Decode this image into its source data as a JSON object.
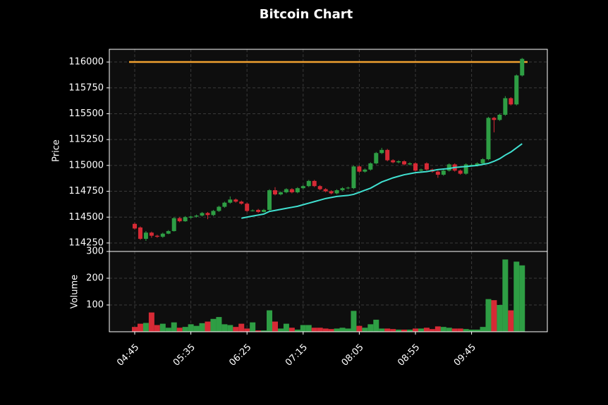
{
  "chart_data": {
    "type": "candlestick",
    "title": "Bitcoin Chart",
    "ylabel": "Price",
    "volume_label": "Volume",
    "categories": [
      "04:45",
      null,
      null,
      null,
      null,
      null,
      null,
      null,
      null,
      null,
      "05:35",
      null,
      null,
      null,
      null,
      null,
      null,
      null,
      null,
      null,
      "06:25",
      null,
      null,
      null,
      null,
      null,
      null,
      null,
      null,
      null,
      "07:15",
      null,
      null,
      null,
      null,
      null,
      null,
      null,
      null,
      null,
      "08:05",
      null,
      null,
      null,
      null,
      null,
      null,
      null,
      null,
      null,
      "08:55",
      null,
      null,
      null,
      null,
      null,
      null,
      null,
      null,
      null,
      "09:45",
      null,
      null,
      null,
      null,
      null,
      null,
      null,
      null,
      null
    ],
    "open": [
      114435,
      114400,
      114290,
      114350,
      114320,
      114310,
      114340,
      114365,
      114490,
      114460,
      114495,
      114505,
      114515,
      114540,
      114520,
      114560,
      114600,
      114640,
      114670,
      114650,
      114630,
      114560,
      114570,
      114550,
      114570,
      114760,
      114720,
      114740,
      114770,
      114740,
      114780,
      114800,
      114850,
      114800,
      114770,
      114750,
      114730,
      114760,
      114780,
      114780,
      114990,
      114940,
      114960,
      115020,
      115120,
      115150,
      115050,
      115030,
      115040,
      115010,
      115020,
      114950,
      115020,
      114960,
      114940,
      114910,
      114950,
      115010,
      114950,
      114920,
      115000,
      115000,
      115020,
      115060,
      115460,
      115440,
      115490,
      115650,
      115590,
      115870
    ],
    "high": [
      114445,
      114410,
      114365,
      114360,
      114330,
      114350,
      114375,
      114500,
      114500,
      114510,
      114515,
      114525,
      114550,
      114550,
      114570,
      114610,
      114650,
      114700,
      114680,
      114660,
      114640,
      114575,
      114580,
      114580,
      114770,
      114790,
      114750,
      114780,
      114780,
      114790,
      114810,
      114860,
      114860,
      114810,
      114780,
      114760,
      114770,
      114790,
      114795,
      115000,
      115000,
      114970,
      115030,
      115130,
      115170,
      115160,
      115060,
      115050,
      115050,
      115030,
      115030,
      114970,
      115030,
      114970,
      114950,
      114960,
      115020,
      115020,
      114960,
      115020,
      115015,
      115030,
      115070,
      115470,
      115470,
      115500,
      115670,
      115660,
      115880,
      116040
    ],
    "low": [
      114380,
      114280,
      114270,
      114300,
      114300,
      114300,
      114335,
      114360,
      114450,
      114455,
      114485,
      114495,
      114505,
      114480,
      114510,
      114550,
      114590,
      114630,
      114640,
      114620,
      114550,
      114555,
      114540,
      114545,
      114560,
      114710,
      114710,
      114730,
      114730,
      114730,
      114770,
      114790,
      114790,
      114760,
      114740,
      114720,
      114720,
      114750,
      114770,
      114770,
      114930,
      114930,
      114950,
      115010,
      115110,
      115040,
      115020,
      115020,
      115000,
      115000,
      114940,
      114940,
      114950,
      114930,
      114880,
      114900,
      114940,
      114940,
      114910,
      114910,
      114990,
      114990,
      115010,
      115050,
      115320,
      115430,
      115480,
      115580,
      115580,
      115860
    ],
    "close": [
      114390,
      114290,
      114350,
      114320,
      114310,
      114340,
      114365,
      114490,
      114460,
      114500,
      114505,
      114515,
      114540,
      114520,
      114560,
      114600,
      114640,
      114670,
      114650,
      114630,
      114560,
      114565,
      114550,
      114570,
      114760,
      114720,
      114740,
      114770,
      114740,
      114780,
      114800,
      114850,
      114800,
      114770,
      114750,
      114730,
      114760,
      114780,
      114785,
      114990,
      114940,
      114960,
      115020,
      115120,
      115150,
      115050,
      115030,
      115040,
      115010,
      115020,
      114950,
      114960,
      114960,
      114940,
      114910,
      114950,
      115010,
      114950,
      114920,
      115010,
      115005,
      115020,
      115060,
      115460,
      115440,
      115490,
      115650,
      115590,
      115870,
      116030
    ],
    "volume": [
      18,
      30,
      33,
      72,
      25,
      30,
      15,
      35,
      15,
      18,
      28,
      22,
      32,
      38,
      48,
      55,
      28,
      25,
      18,
      30,
      12,
      35,
      5,
      5,
      80,
      38,
      12,
      30,
      15,
      8,
      25,
      25,
      15,
      15,
      12,
      10,
      12,
      15,
      12,
      78,
      22,
      15,
      28,
      45,
      12,
      12,
      10,
      8,
      8,
      8,
      12,
      12,
      15,
      10,
      20,
      18,
      15,
      12,
      12,
      10,
      8,
      8,
      18,
      122,
      118,
      100,
      270,
      80,
      262,
      248
    ],
    "ma": [
      null,
      null,
      null,
      null,
      null,
      null,
      null,
      null,
      null,
      null,
      null,
      null,
      null,
      null,
      null,
      null,
      null,
      null,
      null,
      114490,
      114500,
      114510,
      114520,
      114530,
      114555,
      114565,
      114575,
      114585,
      114595,
      114605,
      114620,
      114635,
      114650,
      114665,
      114680,
      114690,
      114700,
      114705,
      114710,
      114720,
      114740,
      114760,
      114780,
      114810,
      114840,
      114860,
      114880,
      114895,
      114910,
      114920,
      114930,
      114935,
      114940,
      114950,
      114960,
      114965,
      114970,
      114980,
      114985,
      114990,
      114995,
      115000,
      115010,
      115020,
      115040,
      115065,
      115100,
      115130,
      115170,
      115210
    ],
    "ma_color": "#40e0d0",
    "up_color": "#2e9e44",
    "down_color": "#d62a35",
    "hline": {
      "value": 116000,
      "color": "#f0a030"
    },
    "ylim": [
      114168,
      116123
    ],
    "yticks": [
      114250,
      114500,
      114750,
      115000,
      115250,
      115500,
      115750,
      116000
    ],
    "volume_ylim": [
      0,
      300
    ],
    "volume_yticks": [
      100,
      200,
      300
    ],
    "grid": true
  }
}
